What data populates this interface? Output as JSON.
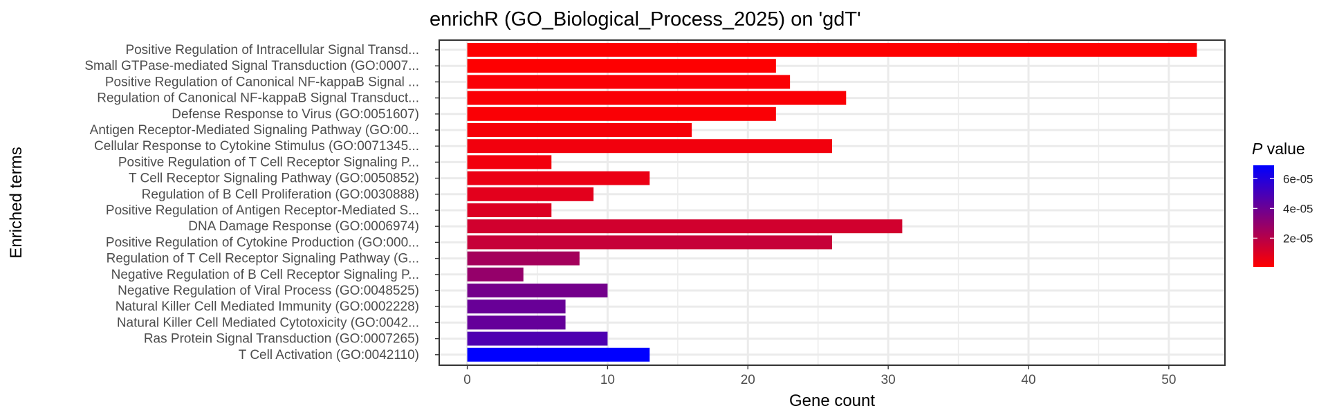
{
  "chart_data": {
    "type": "bar",
    "orientation": "horizontal",
    "title": "enrichR (GO_Biological_Process_2025) on 'gdT'",
    "xlabel": "Gene count",
    "ylabel": "Enriched terms",
    "xlim": [
      -2,
      54
    ],
    "xticks": [
      0,
      10,
      20,
      30,
      40,
      50
    ],
    "xtick_labels": [
      "0",
      "10",
      "20",
      "30",
      "40",
      "50"
    ],
    "grid": true,
    "legend": {
      "title_italic": "P",
      "title_rest": " value",
      "placement": "right",
      "labels": [
        "6e-05",
        "4e-05",
        "2e-05"
      ],
      "ticks": [
        6e-05,
        4e-05,
        2e-05
      ],
      "range": [
        6e-07,
        6.9e-05
      ],
      "colors": {
        "low": "#FF0000",
        "high": "#0000FF"
      }
    },
    "categories": [
      "Positive Regulation of Intracellular Signal Transd...",
      "Small GTPase-mediated Signal Transduction (GO:0007...",
      "Positive Regulation of Canonical NF-kappaB Signal ...",
      "Regulation of Canonical NF-kappaB Signal Transduct...",
      "Defense Response to Virus (GO:0051607)",
      "Antigen Receptor-Mediated Signaling Pathway (GO:00...",
      "Cellular Response to Cytokine Stimulus (GO:0071345...",
      "Positive Regulation of T Cell Receptor Signaling P...",
      "T Cell Receptor Signaling Pathway (GO:0050852)",
      "Regulation of B Cell Proliferation (GO:0030888)",
      "Positive Regulation of Antigen Receptor-Mediated S...",
      "DNA Damage Response (GO:0006974)",
      "Positive Regulation of Cytokine Production (GO:000...",
      "Regulation of T Cell Receptor Signaling Pathway (G...",
      "Negative Regulation of B Cell Receptor Signaling P...",
      "Negative Regulation of Viral Process (GO:0048525)",
      "Natural Killer Cell Mediated Immunity (GO:0002228)",
      "Natural Killer Cell Mediated Cytotoxicity (GO:0042...",
      "Ras Protein Signal Transduction (GO:0007265)",
      "T Cell Activation (GO:0042110)"
    ],
    "values": [
      52,
      22,
      23,
      27,
      22,
      16,
      26,
      6,
      13,
      9,
      6,
      31,
      26,
      8,
      4,
      10,
      7,
      7,
      10,
      13
    ],
    "p_values": [
      1e-06,
      1e-06,
      2e-06,
      2e-06,
      2e-06,
      3e-06,
      4e-06,
      4e-06,
      6e-06,
      8e-06,
      1e-05,
      1.3e-05,
      1.6e-05,
      2.5e-05,
      2.9e-05,
      3.8e-05,
      4.1e-05,
      4.2e-05,
      4.8e-05,
      6.9e-05
    ]
  }
}
